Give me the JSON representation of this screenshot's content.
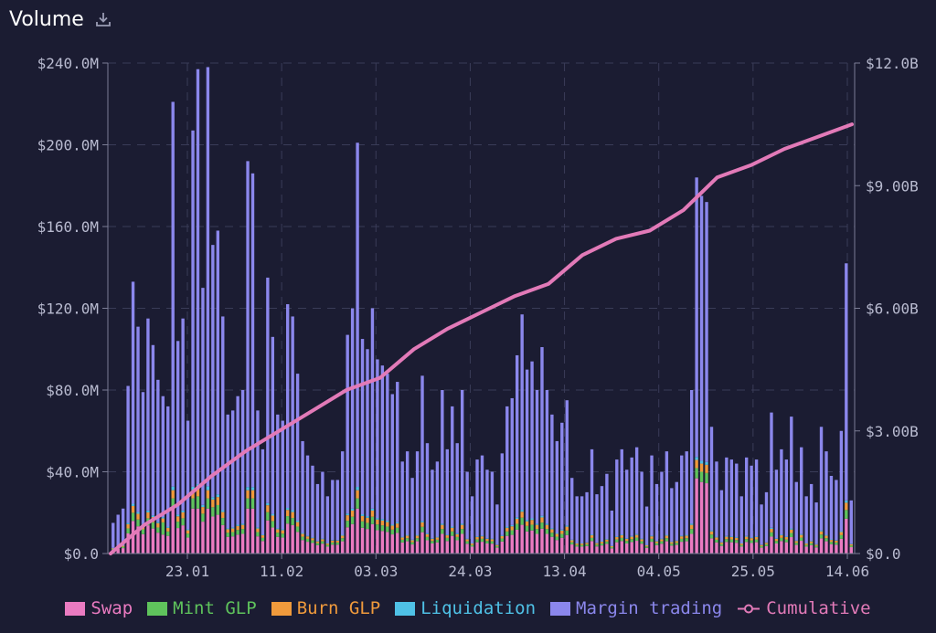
{
  "header": {
    "title": "Volume"
  },
  "chart_data": {
    "type": "bar",
    "title": "Volume",
    "stacked": true,
    "x_tick_labels": [
      "23.01",
      "11.02",
      "03.03",
      "24.03",
      "13.04",
      "04.05",
      "25.05",
      "14.06"
    ],
    "y_left": {
      "range": [
        0,
        240
      ],
      "ticks": [
        "$0.0",
        "$40.0M",
        "$80.0M",
        "$120.0M",
        "$160.0M",
        "$200.0M",
        "$240.0M"
      ],
      "unit": "$M"
    },
    "y_right": {
      "range": [
        0,
        12
      ],
      "ticks": [
        "$0.0",
        "$3.00B",
        "$6.00B",
        "$9.00B",
        "$12.0B"
      ],
      "unit": "$B"
    },
    "grid": true,
    "legend_position": "bottom",
    "colors": {
      "swap": "#ea7bc1",
      "mint": "#5fc35c",
      "burn": "#f09a3c",
      "liquidation": "#4fc1e6",
      "margin": "#8b87ec",
      "cumulative": "#e27ab8"
    },
    "series": [
      {
        "key": "swap",
        "name": "Swap"
      },
      {
        "key": "mint",
        "name": "Mint GLP"
      },
      {
        "key": "burn",
        "name": "Burn GLP"
      },
      {
        "key": "liquidation",
        "name": "Liquidation"
      },
      {
        "key": "margin",
        "name": "Margin trading"
      },
      {
        "key": "cumulative",
        "name": "Cumulative",
        "type": "line",
        "axis": "right"
      }
    ],
    "totals_m": [
      15,
      19,
      22,
      82,
      133,
      111,
      79,
      115,
      102,
      85,
      77,
      72,
      221,
      104,
      115,
      65,
      207,
      237,
      130,
      238,
      151,
      158,
      116,
      68,
      70,
      77,
      80,
      192,
      186,
      70,
      51,
      135,
      106,
      68,
      65,
      122,
      116,
      88,
      55,
      48,
      43,
      34,
      40,
      28,
      36,
      36,
      50,
      107,
      120,
      201,
      105,
      100,
      120,
      95,
      92,
      88,
      78,
      84,
      45,
      50,
      37,
      50,
      87,
      54,
      41,
      45,
      80,
      51,
      72,
      54,
      80,
      40,
      28,
      46,
      48,
      41,
      40,
      24,
      49,
      72,
      76,
      97,
      117,
      90,
      94,
      80,
      101,
      80,
      68,
      55,
      64,
      75,
      37,
      28,
      28,
      30,
      51,
      29,
      33,
      39,
      21,
      46,
      51,
      41,
      47,
      52,
      40,
      23,
      48,
      34,
      40,
      50,
      32,
      35,
      48,
      50,
      80,
      184,
      175,
      172,
      62,
      45,
      31,
      47,
      46,
      44,
      28,
      47,
      43,
      46,
      24,
      30,
      69,
      41,
      51,
      46,
      67,
      35,
      52,
      28,
      34,
      25,
      62,
      50,
      38,
      36,
      60,
      142,
      26
    ],
    "cumulative_b": [
      0,
      0.7,
      1.2,
      1.9,
      2.5,
      3.0,
      3.5,
      4.0,
      4.3,
      5.0,
      5.5,
      5.9,
      6.3,
      6.6,
      7.3,
      7.7,
      7.9,
      8.4,
      9.2,
      9.5,
      9.9,
      10.2,
      10.5
    ]
  },
  "legend": {
    "swap": "Swap",
    "mint": "Mint GLP",
    "burn": "Burn GLP",
    "liquidation": "Liquidation",
    "margin": "Margin trading",
    "cumulative": "Cumulative"
  }
}
